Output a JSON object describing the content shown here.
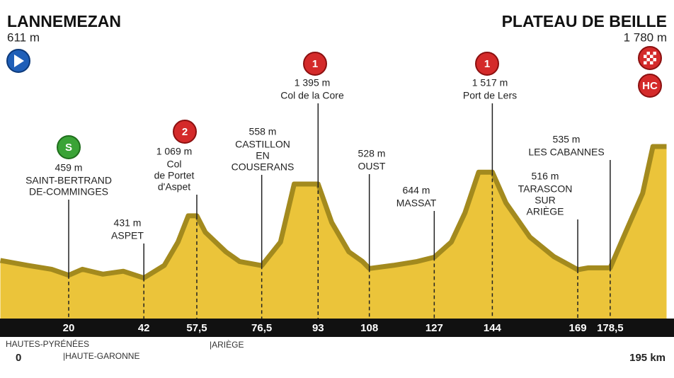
{
  "chart_data": {
    "type": "area",
    "start": {
      "name": "LANNEMEZAN",
      "elevation_label": "611 m"
    },
    "finish": {
      "name": "PLATEAU DE BEILLE",
      "elevation_label": "1 780 m",
      "badge": "HC"
    },
    "x": [
      0,
      8,
      15,
      20,
      24,
      30,
      36,
      42,
      48,
      52,
      55,
      57.5,
      60,
      66,
      70,
      76.5,
      82,
      86,
      90,
      93,
      97,
      102,
      106,
      108,
      115,
      122,
      127,
      132,
      136,
      140,
      144,
      148,
      155,
      162,
      169,
      172,
      178.5,
      183,
      188,
      191,
      195
    ],
    "values": [
      611,
      560,
      520,
      459,
      520,
      470,
      500,
      431,
      560,
      800,
      1069,
      1069,
      900,
      700,
      600,
      558,
      800,
      1395,
      1395,
      1395,
      1000,
      700,
      600,
      528,
      560,
      600,
      644,
      800,
      1100,
      1517,
      1517,
      1200,
      850,
      650,
      516,
      535,
      535,
      900,
      1300,
      1780,
      1780
    ],
    "color": "#ebc43a",
    "xlim": [
      0,
      195
    ],
    "ylim": [
      0,
      1780
    ],
    "xticks": [
      20,
      42,
      {
        "value": 57.5,
        "label": "57,5"
      },
      {
        "value": 76.5,
        "label": "76,5"
      },
      93,
      108,
      127,
      144,
      169,
      {
        "value": 178.5,
        "label": "178,5"
      }
    ],
    "end_label": "195 km",
    "regions": [
      "HAUTES-PYRÉNÉES",
      "|HAUTE-GARONNE",
      "|ARIÈGE"
    ],
    "annotations": [
      {
        "x": 20,
        "elevation": 459,
        "elevation_label": "459 m",
        "name": [
          "SAINT-BERTRAND",
          "DE-COMMINGES"
        ],
        "badge": "S"
      },
      {
        "x": 42,
        "elevation": 431,
        "elevation_label": "431 m",
        "name": [
          "ASPET"
        ]
      },
      {
        "x": 57.5,
        "elevation": 1069,
        "elevation_label": "1 069 m",
        "name": [
          "Col",
          "de Portet",
          "d'Aspet"
        ],
        "badge": "2"
      },
      {
        "x": 76.5,
        "elevation": 558,
        "elevation_label": "558 m",
        "name": [
          "CASTILLON",
          "EN",
          "COUSERANS"
        ]
      },
      {
        "x": 93,
        "elevation": 1395,
        "elevation_label": "1 395 m",
        "name": [
          "Col de la Core"
        ],
        "badge": "1"
      },
      {
        "x": 108,
        "elevation": 528,
        "elevation_label": "528 m",
        "name": [
          "OUST"
        ]
      },
      {
        "x": 127,
        "elevation": 644,
        "elevation_label": "644 m",
        "name": [
          "MASSAT"
        ]
      },
      {
        "x": 144,
        "elevation": 1517,
        "elevation_label": "1 517 m",
        "name": [
          "Port de Lers"
        ],
        "badge": "1"
      },
      {
        "x": 169,
        "elevation": 516,
        "elevation_label": "516 m",
        "name": [
          "TARASCON",
          "SUR",
          "ARIÈGE"
        ]
      },
      {
        "x": 178.5,
        "elevation": 535,
        "elevation_label": "535 m",
        "name": [
          "LES CABANNES"
        ]
      }
    ]
  }
}
